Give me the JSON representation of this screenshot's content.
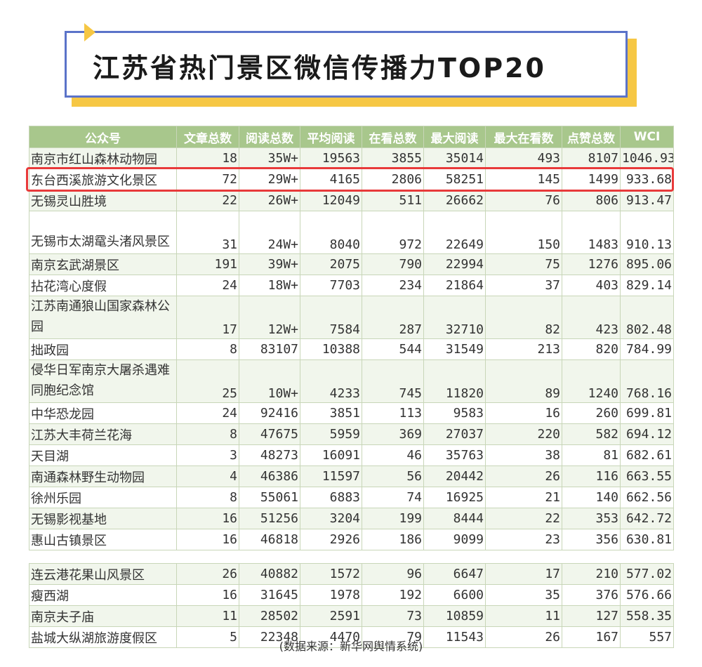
{
  "title": "江苏省热门景区微信传播力TOP20",
  "colors": {
    "header_bg": "#a8c78c",
    "accent_border": "#5b73c9",
    "shadow": "#f6c744",
    "highlight": "#e83a3a"
  },
  "table": {
    "headers": [
      "公众号",
      "文章总数",
      "阅读总数",
      "平均阅读",
      "在看总数",
      "最大阅读",
      "最大在看数",
      "点赞总数",
      "WCI"
    ],
    "rows": [
      [
        "南京市红山森林动物园",
        "18",
        "35W+",
        "19563",
        "3855",
        "35014",
        "493",
        "8107",
        "1046.93"
      ],
      [
        "东台西溪旅游文化景区",
        "72",
        "29W+",
        "4165",
        "2806",
        "58251",
        "145",
        "1499",
        "933.68"
      ],
      [
        "无锡灵山胜境",
        "22",
        "26W+",
        "12049",
        "511",
        "26662",
        "76",
        "806",
        "913.47"
      ],
      [
        "无锡市太湖鼋头渚风景区",
        "31",
        "24W+",
        "8040",
        "972",
        "22649",
        "150",
        "1483",
        "910.13"
      ],
      [
        "南京玄武湖景区",
        "191",
        "39W+",
        "2075",
        "790",
        "22994",
        "75",
        "1276",
        "895.06"
      ],
      [
        "拈花湾心度假",
        "24",
        "18W+",
        "7703",
        "234",
        "21864",
        "37",
        "403",
        "829.14"
      ],
      [
        "江苏南通狼山国家森林公园",
        "17",
        "12W+",
        "7584",
        "287",
        "32710",
        "82",
        "423",
        "802.48"
      ],
      [
        "拙政园",
        "8",
        "83107",
        "10388",
        "544",
        "31549",
        "213",
        "820",
        "784.99"
      ],
      [
        "侵华日军南京大屠杀遇难同胞纪念馆",
        "25",
        "10W+",
        "4233",
        "745",
        "11820",
        "89",
        "1240",
        "768.16"
      ],
      [
        "中华恐龙园",
        "24",
        "92416",
        "3851",
        "113",
        "9583",
        "16",
        "260",
        "699.81"
      ],
      [
        "江苏大丰荷兰花海",
        "8",
        "47675",
        "5959",
        "369",
        "27037",
        "220",
        "582",
        "694.12"
      ],
      [
        "天目湖",
        "3",
        "48273",
        "16091",
        "46",
        "35763",
        "38",
        "81",
        "682.61"
      ],
      [
        "南通森林野生动物园",
        "4",
        "46386",
        "11597",
        "56",
        "20442",
        "26",
        "116",
        "663.55"
      ],
      [
        "徐州乐园",
        "8",
        "55061",
        "6883",
        "74",
        "16925",
        "21",
        "140",
        "662.56"
      ],
      [
        "无锡影视基地",
        "16",
        "51256",
        "3204",
        "199",
        "8444",
        "22",
        "353",
        "642.72"
      ],
      [
        "惠山古镇景区",
        "16",
        "46818",
        "2926",
        "186",
        "9099",
        "23",
        "356",
        "630.81"
      ],
      [
        "连云港花果山风景区",
        "26",
        "40882",
        "1572",
        "96",
        "6647",
        "17",
        "210",
        "577.02"
      ],
      [
        "瘦西湖",
        "16",
        "31645",
        "1978",
        "192",
        "6600",
        "35",
        "376",
        "576.66"
      ],
      [
        "南京夫子庙",
        "11",
        "28502",
        "2591",
        "73",
        "10859",
        "11",
        "127",
        "558.35"
      ],
      [
        "盐城大纵湖旅游度假区",
        "5",
        "22348",
        "4470",
        "79",
        "11543",
        "26",
        "167",
        "557"
      ]
    ]
  },
  "source": "(数据来源：新华网舆情系统)"
}
